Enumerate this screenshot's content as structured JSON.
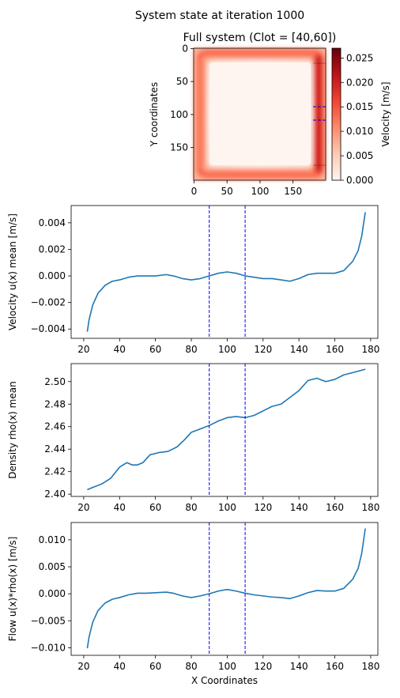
{
  "suptitle": "System state at iteration 1000",
  "heatmap": {
    "title": "Full system (Clot = [40,60])",
    "ylabel": "Y coordinates",
    "xticks": [
      0,
      50,
      100,
      150
    ],
    "yticks": [
      0,
      50,
      100,
      150
    ],
    "colorbar": {
      "label": "Velocity [m/s]",
      "ticks": [
        "0.000",
        "0.005",
        "0.010",
        "0.015",
        "0.020",
        "0.025"
      ],
      "range": [
        0,
        0.027
      ]
    }
  },
  "chart_data": [
    {
      "type": "line",
      "ylabel": "Velocity u(x) mean [m/s]",
      "xlabel": "",
      "xlim": [
        13,
        184
      ],
      "ylim": [
        -0.0047,
        0.0053
      ],
      "xticks": [
        "20",
        "40",
        "60",
        "80",
        "100",
        "120",
        "140",
        "160",
        "180"
      ],
      "yticks": [
        {
          "v": -0.004,
          "label": "−0.004"
        },
        {
          "v": -0.002,
          "label": "−0.002"
        },
        {
          "v": 0.0,
          "label": "0.000"
        },
        {
          "v": 0.002,
          "label": "0.002"
        },
        {
          "v": 0.004,
          "label": "0.004"
        }
      ],
      "vlines": [
        90,
        110
      ],
      "series": [
        {
          "x": [
            22,
            23,
            25,
            28,
            32,
            36,
            40,
            45,
            50,
            55,
            60,
            66,
            70,
            75,
            80,
            85,
            90,
            95,
            100,
            105,
            110,
            115,
            120,
            125,
            130,
            135,
            140,
            145,
            150,
            155,
            160,
            165,
            170,
            173,
            175,
            177
          ],
          "y": [
            -0.0042,
            -0.0033,
            -0.0022,
            -0.0013,
            -0.0007,
            -0.0004,
            -0.0003,
            -0.0001,
            0.0,
            0.0,
            0.0,
            0.0001,
            0.0,
            -0.0002,
            -0.0003,
            -0.0002,
            0.0,
            0.0002,
            0.0003,
            0.0002,
            0.0,
            -0.0001,
            -0.0002,
            -0.0002,
            -0.0003,
            -0.0004,
            -0.0002,
            0.0001,
            0.0002,
            0.0002,
            0.0002,
            0.0004,
            0.0011,
            0.0019,
            0.003,
            0.0048
          ]
        }
      ]
    },
    {
      "type": "line",
      "ylabel": "Density rho(x) mean",
      "xlabel": "",
      "xlim": [
        13,
        184
      ],
      "ylim": [
        2.398,
        2.516
      ],
      "xticks": [
        "20",
        "40",
        "60",
        "80",
        "100",
        "120",
        "140",
        "160",
        "180"
      ],
      "yticks": [
        {
          "v": 2.4,
          "label": "2.40"
        },
        {
          "v": 2.42,
          "label": "2.42"
        },
        {
          "v": 2.44,
          "label": "2.44"
        },
        {
          "v": 2.46,
          "label": "2.46"
        },
        {
          "v": 2.48,
          "label": "2.48"
        },
        {
          "v": 2.5,
          "label": "2.50"
        }
      ],
      "vlines": [
        90,
        110
      ],
      "series": [
        {
          "x": [
            22,
            25,
            30,
            35,
            40,
            44,
            47,
            50,
            53,
            57,
            62,
            67,
            72,
            76,
            80,
            85,
            90,
            95,
            100,
            105,
            110,
            115,
            120,
            125,
            130,
            135,
            140,
            145,
            150,
            155,
            160,
            165,
            170,
            177
          ],
          "y": [
            2.404,
            2.406,
            2.409,
            2.414,
            2.424,
            2.428,
            2.426,
            2.426,
            2.428,
            2.435,
            2.437,
            2.438,
            2.442,
            2.448,
            2.455,
            2.458,
            2.461,
            2.465,
            2.468,
            2.469,
            2.468,
            2.47,
            2.474,
            2.478,
            2.48,
            2.486,
            2.492,
            2.501,
            2.503,
            2.5,
            2.502,
            2.506,
            2.508,
            2.511
          ]
        }
      ]
    },
    {
      "type": "line",
      "ylabel": "Flow u(x)*rho(x) [m/s]",
      "xlabel": "X Coordinates",
      "xlim": [
        13,
        184
      ],
      "ylim": [
        -0.0114,
        0.0132
      ],
      "xticks": [
        "20",
        "40",
        "60",
        "80",
        "100",
        "120",
        "140",
        "160",
        "180"
      ],
      "yticks": [
        {
          "v": -0.01,
          "label": "−0.010"
        },
        {
          "v": -0.005,
          "label": "−0.005"
        },
        {
          "v": 0.0,
          "label": "0.000"
        },
        {
          "v": 0.005,
          "label": "0.005"
        },
        {
          "v": 0.01,
          "label": "0.010"
        }
      ],
      "vlines": [
        90,
        110
      ],
      "series": [
        {
          "x": [
            22,
            23,
            25,
            28,
            32,
            36,
            40,
            45,
            50,
            55,
            60,
            66,
            70,
            75,
            80,
            85,
            90,
            95,
            100,
            105,
            110,
            115,
            120,
            125,
            130,
            135,
            140,
            145,
            150,
            155,
            160,
            165,
            170,
            173,
            175,
            177
          ],
          "y": [
            -0.0101,
            -0.008,
            -0.0053,
            -0.0031,
            -0.0017,
            -0.001,
            -0.0007,
            -0.0002,
            0.0001,
            0.0001,
            0.0002,
            0.0003,
            0.0001,
            -0.0004,
            -0.0007,
            -0.0004,
            0.0,
            0.0005,
            0.0008,
            0.0005,
            0.0001,
            -0.0002,
            -0.0004,
            -0.0006,
            -0.0007,
            -0.0009,
            -0.0004,
            0.0002,
            0.0006,
            0.0005,
            0.0005,
            0.001,
            0.0027,
            0.0047,
            0.0075,
            0.0121
          ]
        }
      ]
    }
  ]
}
